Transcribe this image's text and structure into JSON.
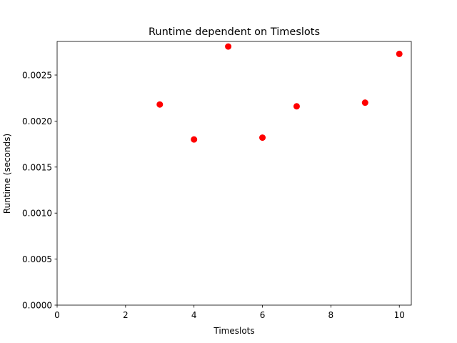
{
  "chart_data": {
    "type": "scatter",
    "title": "Runtime dependent on Timeslots",
    "xlabel": "Timeslots",
    "ylabel": "Runtime (seconds)",
    "xlim": [
      0,
      10.35
    ],
    "ylim": [
      0,
      0.002865
    ],
    "x_ticks": [
      "0",
      "2",
      "4",
      "6",
      "8",
      "10"
    ],
    "y_ticks": [
      "0.0000",
      "0.0005",
      "0.0010",
      "0.0015",
      "0.0020",
      "0.0025"
    ],
    "grid": false,
    "legend": "none",
    "series": [
      {
        "color": "#ff0000",
        "marker": "circle",
        "points": [
          {
            "x": 3,
            "y": 0.00218
          },
          {
            "x": 4,
            "y": 0.0018
          },
          {
            "x": 5,
            "y": 0.00281
          },
          {
            "x": 6,
            "y": 0.00182
          },
          {
            "x": 7,
            "y": 0.00216
          },
          {
            "x": 9,
            "y": 0.0022
          },
          {
            "x": 10,
            "y": 0.00273
          }
        ]
      }
    ]
  }
}
